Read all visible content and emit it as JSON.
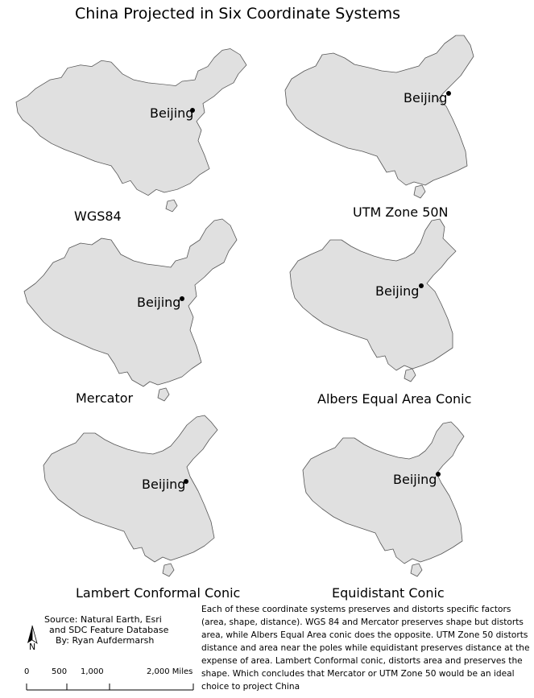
{
  "title": "China Projected in Six Coordinate Systems",
  "colors": {
    "land": "#e0e0e0",
    "outline": "#555555",
    "city_dot": "#000000"
  },
  "maps": [
    {
      "projection_label": "WGS84",
      "city_label": "Beijing"
    },
    {
      "projection_label": "UTM Zone 50N",
      "city_label": "Beijing"
    },
    {
      "projection_label": "Mercator",
      "city_label": "Beijing"
    },
    {
      "projection_label": "Albers Equal Area Conic",
      "city_label": "Beijing"
    },
    {
      "projection_label": "Lambert Conformal Conic",
      "city_label": "Beijing"
    },
    {
      "projection_label": "Equidistant Conic",
      "city_label": "Beijing"
    }
  ],
  "source": {
    "line1": "Source: Natural Earth, Esri",
    "line2": "and SDC Feature Database",
    "line3": "By:  Ryan Aufdermarsh"
  },
  "north_arrow": {
    "letter": "N",
    "icon": "north-arrow-icon"
  },
  "scale_bar": {
    "labels": [
      "0",
      "500",
      "1,000",
      "2,000 Miles"
    ]
  },
  "description": "Each of these coordinate systems preserves and distorts specific factors (area, shape, distance). WGS 84 and Mercator  preserves shape but distorts area, while Albers Equal Area conic does the opposite.  UTM Zone 50 distorts distance and area near the poles while equidistant preserves distance at the expense of area. Lambert Conformal conic, distorts area and preserves the shape. Which concludes that Mercator or UTM Zone 50 would be an ideal choice to project China"
}
